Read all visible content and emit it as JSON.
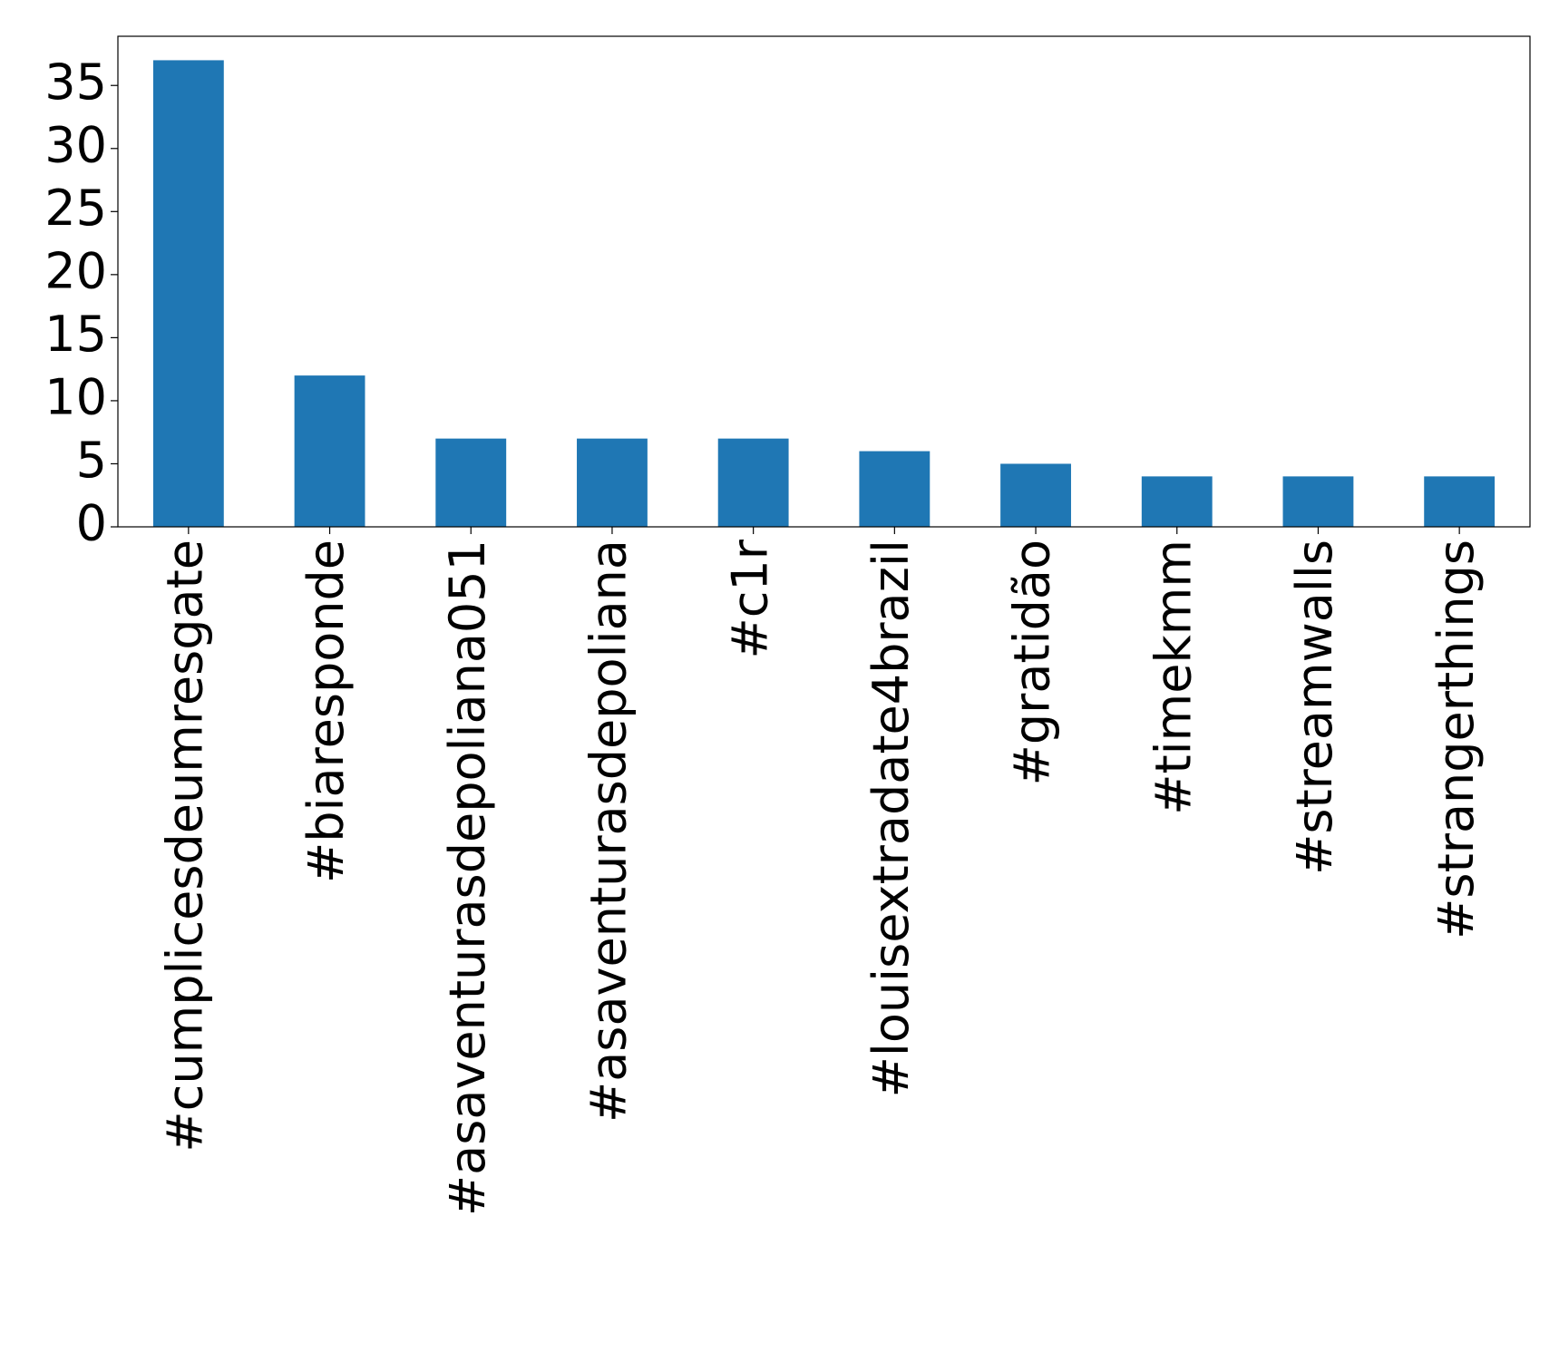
{
  "chart_data": {
    "type": "bar",
    "categories": [
      "#cumplicesdeumresgate",
      "#biaresponde",
      "#asaventurasdepoliana051",
      "#asaventurasdepoliana",
      "#c1r",
      "#louisextradate4brazil",
      "#gratidão",
      "#timekmm",
      "#streamwalls",
      "#strangerthings"
    ],
    "values": [
      37,
      12,
      7,
      7,
      7,
      6,
      5,
      4,
      4,
      4
    ],
    "color": "#1f77b4",
    "ylim": [
      0,
      38.9
    ],
    "yticks": [
      0,
      5,
      10,
      15,
      20,
      25,
      30,
      35
    ],
    "grid": false
  }
}
